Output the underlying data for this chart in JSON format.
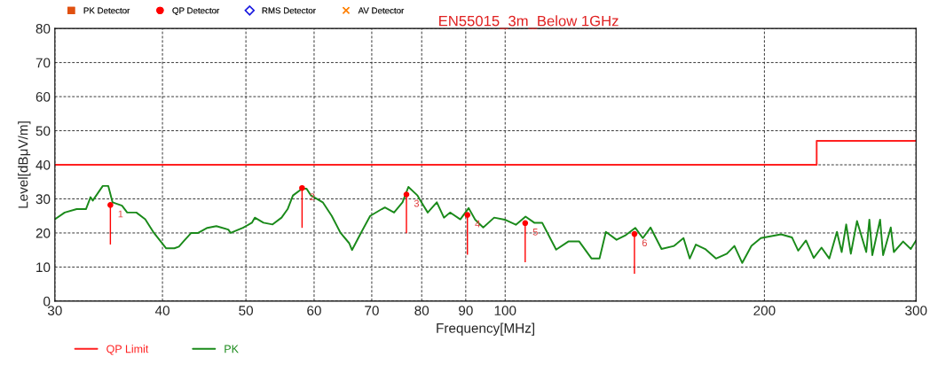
{
  "chart_data": {
    "type": "line",
    "title": "EN55015_3m_Below 1GHz",
    "xlabel": "Frequency[MHz]",
    "ylabel": "Level[dBμV/m]",
    "log": "x",
    "xlim": [
      30,
      300
    ],
    "xticks": [
      30,
      40,
      50,
      60,
      70,
      80,
      90,
      100,
      200,
      300
    ],
    "ylim": [
      0,
      80
    ],
    "yticks": [
      0,
      10,
      20,
      30,
      40,
      50,
      60,
      70,
      80
    ],
    "grid": true,
    "legend": "left",
    "series": [
      {
        "name": "PK Detector",
        "type": "scatter",
        "marker": "square",
        "color": "#e05010"
      },
      {
        "name": "QP Detector",
        "type": "scatter",
        "marker": "circle",
        "color": "#ff0000",
        "x": [
          34.8,
          58.1,
          76.8,
          90.4,
          105.5,
          141.3
        ],
        "values": [
          28.2,
          33.2,
          31.3,
          25.3,
          22.9,
          19.7
        ],
        "errors": [
          [
            16.6,
            28.2
          ],
          [
            21.5,
            33.2
          ],
          [
            19.9,
            31.3
          ],
          [
            13.6,
            25.3
          ],
          [
            11.4,
            22.9
          ],
          [
            8.0,
            19.7
          ]
        ]
      },
      {
        "name": "RMS Detector",
        "type": "scatter",
        "marker": "diamond",
        "color": "#2020e0"
      },
      {
        "name": "AV Detector",
        "type": "scatter",
        "marker": "cross",
        "color": "#ff8000"
      },
      {
        "name": "QP Limit",
        "type": "step",
        "color": "#ff2020",
        "x": [
          30,
          230,
          300
        ],
        "values": [
          40,
          47,
          47
        ]
      },
      {
        "name": "PK",
        "color": "#1a8a1a",
        "x": [
          30,
          30.8,
          31.8,
          32.6,
          33.0,
          33.2,
          34.1,
          34.6,
          35.0,
          35.9,
          36.4,
          37.3,
          38.2,
          39.1,
          40.4,
          41.3,
          41.8,
          42.3,
          43.2,
          44.0,
          45.1,
          46.2,
          47.7,
          48.0,
          49.6,
          50.0,
          50.8,
          51.2,
          52.4,
          53.7,
          55.0,
          55.9,
          56.7,
          58.1,
          58.8,
          59.5,
          61.4,
          62.9,
          64.4,
          65.9,
          66.4,
          68.0,
          69.7,
          71.9,
          72.5,
          74.3,
          76.0,
          77.2,
          79.1,
          80.4,
          81.3,
          83.3,
          84.9,
          86.3,
          88.7,
          90.7,
          92.3,
          94.3,
          97.1,
          99.9,
          102.9,
          105.6,
          108.1,
          110.4,
          114.6,
          118.4,
          121.9,
          126.0,
          128.7,
          130.9,
          134.7,
          138.1,
          141.6,
          144.5,
          147.5,
          151.9,
          157.1,
          161.1,
          163.8,
          166.5,
          170.7,
          175.7,
          180.9,
          184.6,
          188.5,
          193.2,
          198.1,
          209.1,
          215.3,
          218.9,
          223.5,
          228.2,
          233.0,
          237.9,
          242.8,
          245.9,
          248.9,
          252.0,
          256.2,
          262.6,
          264.8,
          266.9,
          272.5,
          274.7,
          280.4,
          282.7,
          289.8,
          295.8,
          300
        ],
        "values": [
          24,
          26,
          27,
          27,
          30.5,
          29.5,
          33.8,
          33.8,
          29,
          28,
          26,
          26,
          24,
          20,
          15.5,
          15.5,
          16,
          17.5,
          20,
          20,
          21.5,
          22,
          21,
          20,
          21.5,
          22,
          23,
          24.5,
          23,
          22.5,
          24.5,
          27,
          31,
          33,
          33,
          31,
          29,
          25,
          20,
          17,
          15,
          20,
          25,
          27,
          27.5,
          26,
          29,
          33.5,
          31,
          28,
          26,
          29,
          24.5,
          26,
          24,
          27.3,
          23.9,
          21.6,
          24.5,
          23.9,
          22.4,
          24.8,
          23.0,
          23.0,
          15.1,
          17.5,
          17.5,
          12.5,
          12.5,
          20.3,
          18.0,
          19.4,
          21.5,
          18.5,
          21.6,
          15.3,
          16.2,
          18.5,
          12.5,
          16.6,
          15.3,
          12.5,
          13.9,
          16.2,
          11.2,
          16.2,
          18.5,
          19.6,
          18.7,
          14.8,
          17.8,
          12.7,
          15.7,
          12.5,
          20.3,
          14.4,
          22.5,
          13.9,
          23.5,
          14.4,
          23.9,
          13.5,
          23.9,
          13.5,
          21.6,
          14.4,
          17.5,
          15.3,
          17.8
        ]
      }
    ],
    "annotations": [
      {
        "text": "1",
        "x": 34.8,
        "y": 28.2
      },
      {
        "text": "2",
        "x": 58.1,
        "y": 33.2
      },
      {
        "text": "3",
        "x": 76.8,
        "y": 31.3
      },
      {
        "text": "4",
        "x": 90.4,
        "y": 25.3
      },
      {
        "text": "5",
        "x": 105.5,
        "y": 22.9
      },
      {
        "text": "6",
        "x": 141.3,
        "y": 19.7
      }
    ]
  }
}
